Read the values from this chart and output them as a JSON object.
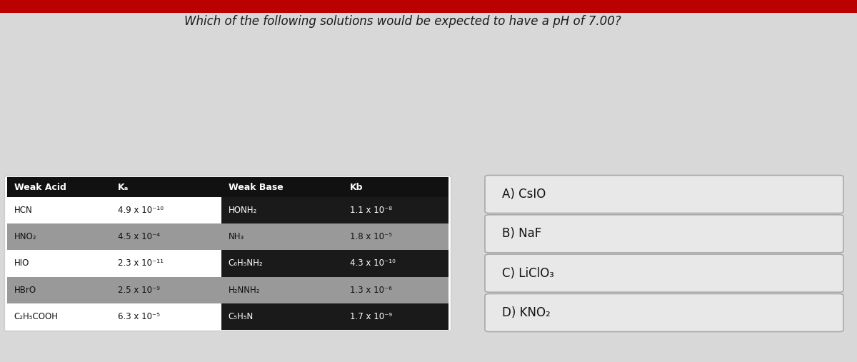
{
  "title": "Which of the following solutions would be expected to have a pH of 7.00?",
  "bg_color": "#d8d8d8",
  "top_bar_color": "#bb0000",
  "table_header_bg": "#111111",
  "row_colors_acid": [
    "#ffffff",
    "#999999",
    "#ffffff",
    "#999999",
    "#ffffff"
  ],
  "row_colors_base": [
    "#111111",
    "#999999",
    "#111111",
    "#999999",
    "#111111"
  ],
  "weak_acids": [
    "HCN",
    "HNO₂",
    "HIO",
    "HBrO",
    "C₂H₅COOH"
  ],
  "ka_values": [
    "4.9 x 10⁻¹⁰",
    "4.5 x 10⁻⁴",
    "2.3 x 10⁻¹¹",
    "2.5 x 10⁻⁹",
    "6.3 x 10⁻⁵"
  ],
  "weak_bases": [
    "HONH₂",
    "NH₃",
    "C₆H₅NH₂",
    "H₂NNH₂",
    "C₅H₅N"
  ],
  "kb_values": [
    "1.1 x 10⁻⁸",
    "1.8 x 10⁻⁵",
    "4.3 x 10⁻¹⁰",
    "1.3 x 10⁻⁶",
    "1.7 x 10⁻⁹"
  ],
  "answers": [
    "A) CsIO",
    "B) NaF",
    "C) LiClO₃",
    "D) KNO₂"
  ],
  "answer_box_bg": "#e8e8e8",
  "answer_box_edge": "#aaaaaa"
}
